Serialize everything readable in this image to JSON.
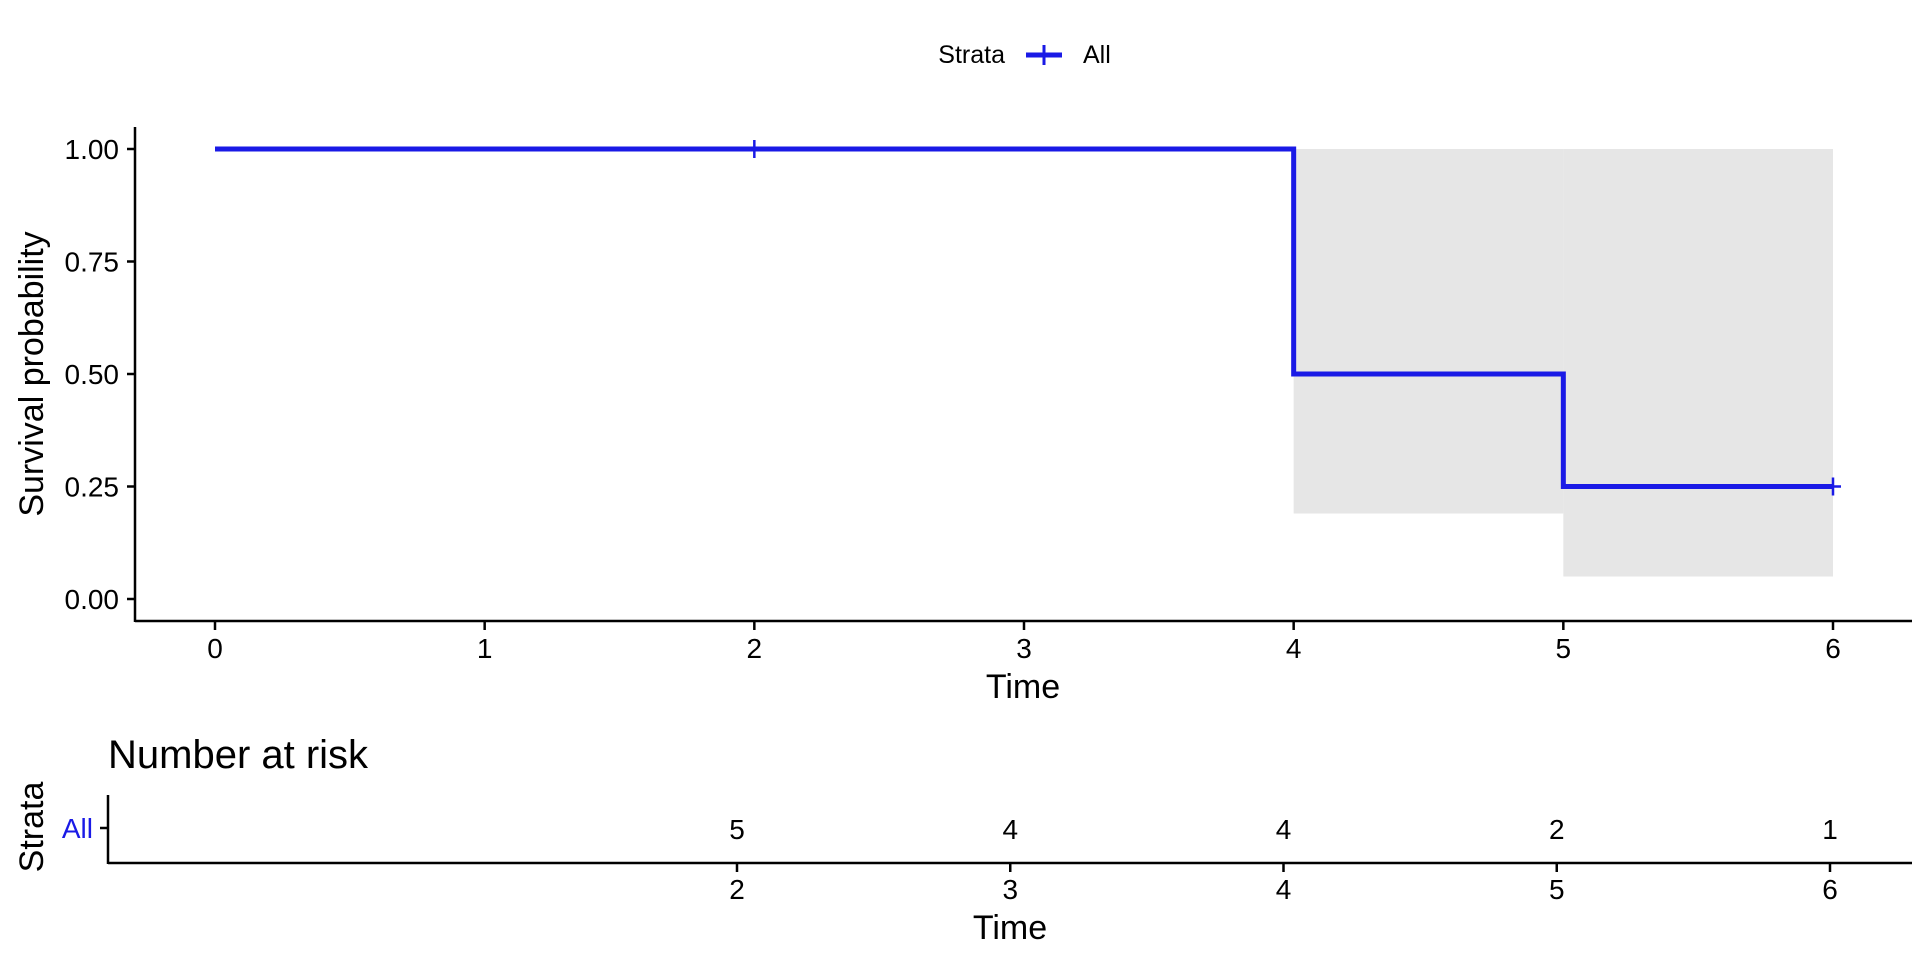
{
  "legend": {
    "title": "Strata",
    "item_label": "All"
  },
  "colors": {
    "curve": "#1a1ae6",
    "ci_band": "#e6e6e6",
    "axis": "#000000"
  },
  "chart_data": [
    {
      "type": "line",
      "chart_subtype": "kaplan-meier step",
      "xlabel": "Time",
      "ylabel": "Survival probability",
      "xlim": [
        -0.3,
        6.3
      ],
      "ylim": [
        0,
        1.05
      ],
      "x_ticks": [
        "0",
        "1",
        "2",
        "3",
        "4",
        "5",
        "6"
      ],
      "y_ticks": [
        "0.00",
        "0.25",
        "0.50",
        "0.75",
        "1.00"
      ],
      "grid": false,
      "legend_position": "top",
      "series": [
        {
          "name": "All",
          "x": [
            0,
            4,
            5,
            6
          ],
          "y": [
            1.0,
            0.5,
            0.25,
            0.25
          ],
          "ci_lower": [
            1.0,
            0.19,
            0.05,
            0.05
          ],
          "ci_upper": [
            1.0,
            1.0,
            1.0,
            1.0
          ],
          "censor_times": [
            2,
            6
          ],
          "censor_values": [
            1.0,
            0.25
          ]
        }
      ]
    },
    {
      "type": "table",
      "title": "Number at risk",
      "xlabel": "Time",
      "ylabel": "Strata",
      "row_labels": [
        "All"
      ],
      "x_ticks": [
        "2",
        "3",
        "4",
        "5",
        "6"
      ],
      "columns": [
        2,
        3,
        4,
        5,
        6
      ],
      "values": [
        [
          5,
          4,
          4,
          2,
          1
        ]
      ]
    }
  ]
}
